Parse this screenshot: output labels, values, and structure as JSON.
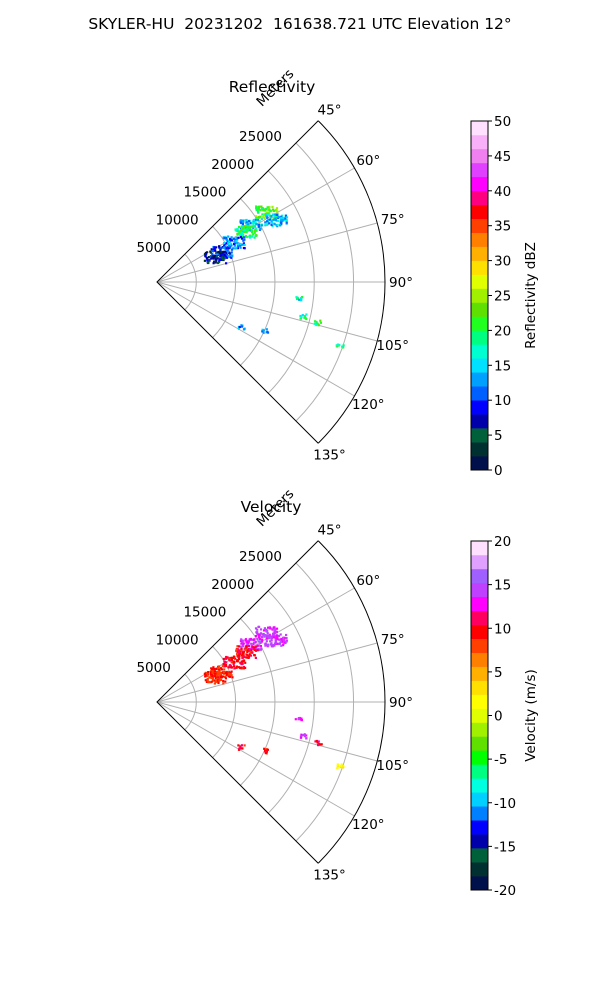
{
  "figure": {
    "title": "SKYLER-HU  20231202  161638.721 UTC Elevation 12°"
  },
  "chart_data": [
    {
      "type": "polar-ppi",
      "title": "Reflectivity",
      "radial_label": "Meters",
      "theta_ticks": [
        "45°",
        "60°",
        "75°",
        "90°",
        "105°",
        "120°",
        "135°"
      ],
      "theta_range_deg": [
        45,
        135
      ],
      "r_ticks": [
        "5000",
        "10000",
        "15000",
        "20000",
        "25000"
      ],
      "r_max": 29000,
      "grid": true,
      "colorbar": {
        "label": "Reflectivity dBZ",
        "ticks": [
          "0",
          "5",
          "10",
          "15",
          "20",
          "25",
          "30",
          "35",
          "40",
          "45",
          "50"
        ],
        "range": [
          0,
          50
        ]
      },
      "echoes": [
        {
          "azimuth_deg": 58,
          "range_m": 14000,
          "value": 14
        },
        {
          "azimuth_deg": 60,
          "range_m": 13000,
          "value": 20
        },
        {
          "azimuth_deg": 62,
          "range_m": 11000,
          "value": 12
        },
        {
          "azimuth_deg": 64,
          "range_m": 9000,
          "value": 10
        },
        {
          "azimuth_deg": 66,
          "range_m": 8000,
          "value": 5
        },
        {
          "azimuth_deg": 57,
          "range_m": 16500,
          "value": 22
        },
        {
          "azimuth_deg": 62,
          "range_m": 17000,
          "value": 14
        },
        {
          "azimuth_deg": 96,
          "range_m": 18000,
          "value": 17
        },
        {
          "azimuth_deg": 103,
          "range_m": 19000,
          "value": 18
        },
        {
          "azimuth_deg": 104,
          "range_m": 21000,
          "value": 20
        },
        {
          "azimuth_deg": 114,
          "range_m": 15000,
          "value": 13
        },
        {
          "azimuth_deg": 118,
          "range_m": 12000,
          "value": 12
        },
        {
          "azimuth_deg": 109,
          "range_m": 24500,
          "value": 20
        }
      ]
    },
    {
      "type": "polar-ppi",
      "title": "Velocity",
      "radial_label": "Meters",
      "theta_ticks": [
        "45°",
        "60°",
        "75°",
        "90°",
        "105°",
        "120°",
        "135°"
      ],
      "theta_range_deg": [
        45,
        135
      ],
      "r_ticks": [
        "5000",
        "10000",
        "15000",
        "20000",
        "25000"
      ],
      "r_max": 29000,
      "grid": true,
      "colorbar": {
        "label": "Velocity (m/s)",
        "ticks": [
          "-20",
          "-15",
          "-10",
          "-5",
          "0",
          "5",
          "10",
          "15",
          "20"
        ],
        "range": [
          -20,
          20
        ]
      },
      "echoes": [
        {
          "azimuth_deg": 58,
          "range_m": 14000,
          "value": 14
        },
        {
          "azimuth_deg": 60,
          "range_m": 13000,
          "value": 10
        },
        {
          "azimuth_deg": 62,
          "range_m": 11000,
          "value": 10
        },
        {
          "azimuth_deg": 64,
          "range_m": 9000,
          "value": 9
        },
        {
          "azimuth_deg": 66,
          "range_m": 8000,
          "value": 9
        },
        {
          "azimuth_deg": 57,
          "range_m": 16500,
          "value": 14
        },
        {
          "azimuth_deg": 62,
          "range_m": 17000,
          "value": 14
        },
        {
          "azimuth_deg": 96,
          "range_m": 18000,
          "value": 14
        },
        {
          "azimuth_deg": 103,
          "range_m": 19000,
          "value": 13
        },
        {
          "azimuth_deg": 104,
          "range_m": 21000,
          "value": 11
        },
        {
          "azimuth_deg": 114,
          "range_m": 15000,
          "value": 10
        },
        {
          "azimuth_deg": 118,
          "range_m": 12000,
          "value": 10
        },
        {
          "azimuth_deg": 109,
          "range_m": 24500,
          "value": 2
        }
      ]
    }
  ],
  "colors": {
    "grid": "#b0b0b0",
    "frame": "#000000",
    "reflectivity_scale": [
      "#00104a",
      "#003030",
      "#00603a",
      "#0000aa",
      "#0000ff",
      "#0060ff",
      "#00a0ff",
      "#00e0ff",
      "#00ffd0",
      "#00ff80",
      "#20ff20",
      "#60e000",
      "#a0f000",
      "#e0ff00",
      "#ffe000",
      "#ffb000",
      "#ff8000",
      "#ff4000",
      "#ff0000",
      "#ff0080",
      "#ff00ff",
      "#e040ff",
      "#f080f0",
      "#f8b0f8",
      "#ffe0ff"
    ],
    "velocity_scale": [
      "#00104a",
      "#003030",
      "#00603a",
      "#0000aa",
      "#0000ff",
      "#0080ff",
      "#00d0ff",
      "#00ffe0",
      "#00ff80",
      "#00ff00",
      "#60e000",
      "#a0f000",
      "#e0ff00",
      "#ffff00",
      "#ffe000",
      "#ffb000",
      "#ff8000",
      "#ff4000",
      "#ff0000",
      "#ff0060",
      "#ff00ff",
      "#c040ff",
      "#a060ff",
      "#e0a0ff",
      "#ffe0ff"
    ]
  }
}
